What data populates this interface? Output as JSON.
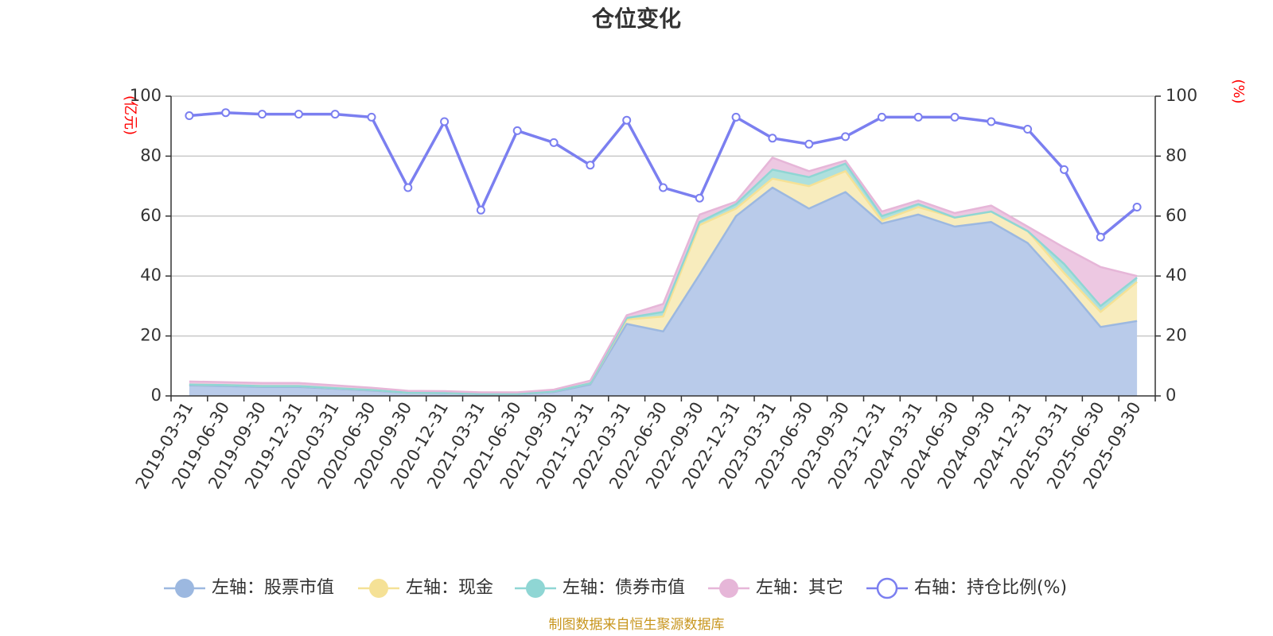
{
  "chart_data": {
    "type": "area",
    "title": "仓位变化",
    "left_axis_unit": "(亿元)",
    "right_axis_unit": "(%)",
    "ylim_left": [
      0,
      100
    ],
    "ylim_right": [
      0,
      100
    ],
    "y_ticks": [
      0,
      20,
      40,
      60,
      80,
      100
    ],
    "stacked": true,
    "legend_position": "bottom-center",
    "source_text": "制图数据来自恒生聚源数据库",
    "x": [
      "2019-03-31",
      "2019-06-30",
      "2019-09-30",
      "2019-12-31",
      "2020-03-31",
      "2020-06-30",
      "2020-09-30",
      "2020-12-31",
      "2021-03-31",
      "2021-06-30",
      "2021-09-30",
      "2021-12-31",
      "2022-03-31",
      "2022-06-30",
      "2022-09-30",
      "2022-12-31",
      "2023-03-31",
      "2023-06-30",
      "2023-09-30",
      "2023-12-31",
      "2024-03-31",
      "2024-06-30",
      "2024-09-30",
      "2024-12-31",
      "2025-03-31",
      "2025-06-30",
      "2025-09-30"
    ],
    "series": [
      {
        "name": "左轴：股票市值",
        "axis": "left",
        "color": "#9cb8e0",
        "fill": "#b9cbea",
        "values": [
          3.5,
          3.3,
          3.0,
          3.0,
          2.4,
          1.8,
          1.0,
          0.9,
          0.6,
          0.6,
          1.3,
          3.8,
          24.0,
          21.5,
          40.5,
          60.0,
          69.5,
          62.5,
          68.0,
          57.5,
          60.5,
          56.5,
          58.0,
          51.0,
          37.5,
          23.0,
          25.0
        ]
      },
      {
        "name": "左轴：现金",
        "axis": "left",
        "color": "#f5e196",
        "fill": "#f8ecbd",
        "values": [
          0.3,
          0.3,
          0.3,
          0.3,
          0.2,
          0.2,
          0.1,
          0.1,
          0.1,
          0.1,
          0.2,
          0.4,
          1.5,
          5.0,
          16.5,
          2.5,
          3.0,
          7.5,
          7.0,
          1.0,
          2.5,
          3.0,
          3.5,
          4.0,
          3.5,
          5.0,
          13.0
        ]
      },
      {
        "name": "左轴：债券市值",
        "axis": "left",
        "color": "#8fd6d4",
        "fill": "#aee0dd",
        "values": [
          0,
          0,
          0,
          0,
          0,
          0,
          0,
          0,
          0,
          0,
          0,
          0,
          0.5,
          1.5,
          1.0,
          1.5,
          3.0,
          3.0,
          2.5,
          1.5,
          1.0,
          0,
          0,
          0,
          3.0,
          2.0,
          1.5
        ]
      },
      {
        "name": "左轴：其它",
        "axis": "left",
        "color": "#e6b6d8",
        "fill": "#edc8e2",
        "values": [
          1.0,
          1.0,
          1.0,
          1.0,
          0.9,
          0.7,
          0.6,
          0.6,
          0.5,
          0.5,
          0.6,
          0.9,
          0.9,
          2.7,
          2.5,
          0.8,
          4.0,
          2.0,
          1.0,
          1.5,
          1.2,
          1.5,
          2.0,
          1.5,
          5.5,
          13.0,
          0.5
        ]
      },
      {
        "name": "右轴：持仓比例(%)",
        "axis": "right",
        "color": "#7b7ff0",
        "values": [
          93.5,
          94.5,
          94.0,
          94.0,
          94.0,
          93.0,
          69.5,
          91.5,
          62.0,
          88.5,
          84.5,
          77.0,
          92.0,
          69.5,
          66.0,
          93.0,
          86.0,
          84.0,
          86.5,
          93.0,
          93.0,
          93.0,
          91.5,
          89.0,
          75.5,
          53.0,
          63.0
        ]
      }
    ]
  }
}
